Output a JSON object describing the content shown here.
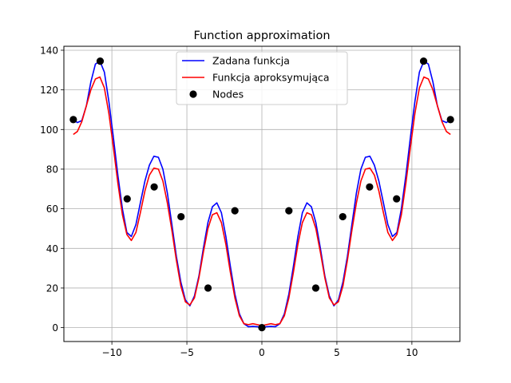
{
  "chart_data": {
    "type": "line",
    "title": "Function approximation",
    "xlabel": "",
    "ylabel": "",
    "xlim": [
      -13.2,
      13.2
    ],
    "ylim": [
      -7,
      142
    ],
    "x_ticks": [
      -10,
      -5,
      0,
      5,
      10
    ],
    "x_tick_labels": [
      "−10",
      "−5",
      "0",
      "5",
      "10"
    ],
    "y_ticks": [
      0,
      20,
      40,
      60,
      80,
      100,
      120,
      140
    ],
    "y_tick_labels": [
      "0",
      "20",
      "40",
      "60",
      "80",
      "100",
      "120",
      "140"
    ],
    "grid": true,
    "legend_position": "top-center",
    "series": [
      {
        "name": "Zadana funkcja",
        "color": "#0000ff",
        "kind": "line",
        "x": [
          -12.57,
          -12.3,
          -12.0,
          -11.7,
          -11.4,
          -11.1,
          -10.8,
          -10.5,
          -10.2,
          -9.9,
          -9.6,
          -9.3,
          -9.0,
          -8.7,
          -8.4,
          -8.1,
          -7.8,
          -7.5,
          -7.2,
          -6.9,
          -6.6,
          -6.3,
          -6.0,
          -5.7,
          -5.4,
          -5.1,
          -4.8,
          -4.5,
          -4.2,
          -3.9,
          -3.6,
          -3.3,
          -3.0,
          -2.7,
          -2.4,
          -2.1,
          -1.8,
          -1.5,
          -1.2,
          -0.9,
          -0.6,
          -0.3,
          0.0,
          0.3,
          0.6,
          0.9,
          1.2,
          1.5,
          1.8,
          2.1,
          2.4,
          2.7,
          3.0,
          3.3,
          3.6,
          3.9,
          4.2,
          4.5,
          4.8,
          5.1,
          5.4,
          5.7,
          6.0,
          6.3,
          6.6,
          6.9,
          7.2,
          7.5,
          7.8,
          8.1,
          8.4,
          8.7,
          9.0,
          9.3,
          9.6,
          9.9,
          10.2,
          10.5,
          10.8,
          11.1,
          11.4,
          11.7,
          12.0,
          12.3,
          12.57
        ],
        "y": [
          105,
          103.5,
          104.5,
          112,
          124,
          133,
          134.5,
          129,
          114,
          96,
          77,
          60,
          48,
          46,
          52,
          63,
          74,
          82,
          86.5,
          86,
          80,
          68,
          52,
          36,
          23,
          14,
          11,
          16,
          26,
          40,
          53,
          61,
          63,
          58,
          46,
          31,
          17,
          7,
          2,
          0.5,
          0.6,
          0.5,
          0,
          0.5,
          0.6,
          0.5,
          2,
          7,
          17,
          31,
          46,
          58,
          63,
          61,
          53,
          40,
          26,
          16,
          11,
          14,
          23,
          36,
          52,
          68,
          80,
          86,
          86.5,
          82,
          74,
          63,
          52,
          46,
          48,
          60,
          77,
          96,
          114,
          129,
          134.5,
          133,
          124,
          112,
          104.5,
          103.5,
          105
        ]
      },
      {
        "name": "Funkcja aproksymująca",
        "color": "#ff0000",
        "kind": "line",
        "x": [
          -12.57,
          -12.3,
          -12.0,
          -11.7,
          -11.4,
          -11.1,
          -10.8,
          -10.5,
          -10.2,
          -9.9,
          -9.6,
          -9.3,
          -9.0,
          -8.7,
          -8.4,
          -8.1,
          -7.8,
          -7.5,
          -7.2,
          -6.9,
          -6.6,
          -6.3,
          -6.0,
          -5.7,
          -5.4,
          -5.1,
          -4.8,
          -4.5,
          -4.2,
          -3.9,
          -3.6,
          -3.3,
          -3.0,
          -2.7,
          -2.4,
          -2.1,
          -1.8,
          -1.5,
          -1.2,
          -0.9,
          -0.6,
          -0.3,
          0.0,
          0.3,
          0.6,
          0.9,
          1.2,
          1.5,
          1.8,
          2.1,
          2.4,
          2.7,
          3.0,
          3.3,
          3.6,
          3.9,
          4.2,
          4.5,
          4.8,
          5.1,
          5.4,
          5.7,
          6.0,
          6.3,
          6.6,
          6.9,
          7.2,
          7.5,
          7.8,
          8.1,
          8.4,
          8.7,
          9.0,
          9.3,
          9.6,
          9.9,
          10.2,
          10.5,
          10.8,
          11.1,
          11.4,
          11.7,
          12.0,
          12.3,
          12.57
        ],
        "y": [
          97.5,
          99,
          104,
          112,
          120,
          125.5,
          126.5,
          121,
          108,
          91,
          73,
          57,
          47,
          44,
          48,
          58,
          69,
          77,
          80.5,
          80,
          74,
          63,
          49,
          34,
          21,
          13,
          11.5,
          15,
          25,
          38,
          50,
          57,
          58,
          53,
          42,
          28,
          15,
          6,
          2,
          1.5,
          2,
          1.5,
          1,
          1.5,
          2,
          1.5,
          2,
          6,
          15,
          28,
          42,
          53,
          58,
          57,
          50,
          38,
          25,
          15,
          11.5,
          13,
          21,
          34,
          49,
          63,
          74,
          80,
          80.5,
          77,
          69,
          58,
          48,
          44,
          47,
          57,
          73,
          91,
          108,
          121,
          126.5,
          125.5,
          120,
          112,
          104,
          99,
          97.5
        ]
      },
      {
        "name": "Nodes",
        "color": "#000000",
        "kind": "scatter",
        "x": [
          -12.57,
          -10.78,
          -8.98,
          -7.18,
          -5.39,
          -3.59,
          -1.8,
          0.0,
          1.8,
          3.59,
          5.39,
          7.18,
          8.98,
          10.78,
          12.57
        ],
        "y": [
          105,
          134.5,
          65,
          71,
          56,
          20,
          59,
          0,
          59,
          20,
          56,
          71,
          65,
          134.5,
          105
        ]
      }
    ]
  }
}
